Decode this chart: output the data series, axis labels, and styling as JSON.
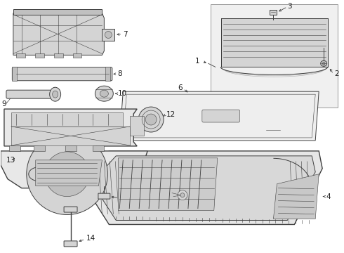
{
  "bg_color": "#ffffff",
  "line_color": "#404040",
  "label_color": "#1a1a1a",
  "font_size": 7.5,
  "fill_light": "#e8e8e8",
  "fill_mid": "#d4d4d4",
  "fill_dark": "#c0c0c0",
  "fill_box": "#f0f0f0",
  "fill_tub": "#dcdcdc"
}
